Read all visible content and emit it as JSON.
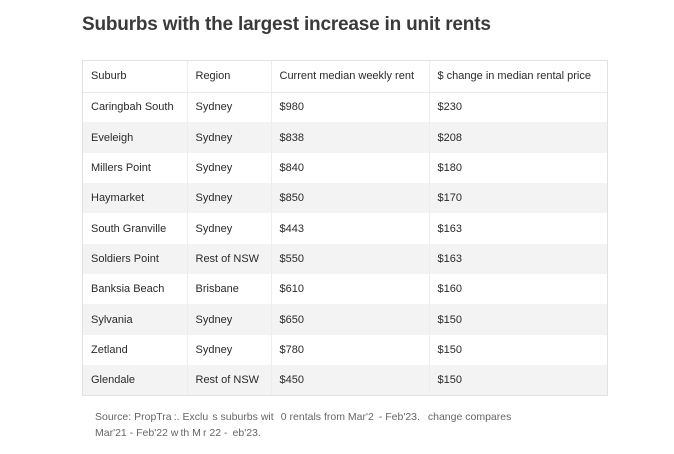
{
  "title": "Suburbs with the largest increase in unit rents",
  "table": {
    "headers": [
      "Suburb",
      "Region",
      "Current median weekly rent",
      "$ change in median rental price"
    ],
    "rows": [
      [
        "Caringbah South",
        "Sydney",
        "$980",
        "$230"
      ],
      [
        "Eveleigh",
        "Sydney",
        "$838",
        "$208"
      ],
      [
        "Millers Point",
        "Sydney",
        "$840",
        "$180"
      ],
      [
        "Haymarket",
        "Sydney",
        "$850",
        "$170"
      ],
      [
        "South Granville",
        "Sydney",
        "$443",
        "$163"
      ],
      [
        "Soldiers Point",
        "Rest of NSW",
        "$550",
        "$163"
      ],
      [
        "Banksia Beach",
        "Brisbane",
        "$610",
        "$160"
      ],
      [
        "Sylvania",
        "Sydney",
        "$650",
        "$150"
      ],
      [
        "Zetland",
        "Sydney",
        "$780",
        "$150"
      ],
      [
        "Glendale",
        "Rest of NSW",
        "$450",
        "$150"
      ]
    ]
  },
  "footnote": {
    "line1": "Source: PropTra :. Exclu  s suburbs wit   0 rentals from Mar'2  - Feb'23.   change compares",
    "line2": "Mar'21 - Feb'22 w th M r 22 -  eb'23."
  }
}
